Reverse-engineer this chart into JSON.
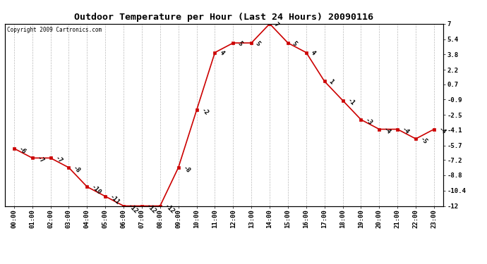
{
  "title": "Outdoor Temperature per Hour (Last 24 Hours) 20090116",
  "copyright_text": "Copyright 2009 Cartronics.com",
  "hours": [
    "00:00",
    "01:00",
    "02:00",
    "03:00",
    "04:00",
    "05:00",
    "06:00",
    "07:00",
    "08:00",
    "09:00",
    "10:00",
    "11:00",
    "12:00",
    "13:00",
    "14:00",
    "15:00",
    "16:00",
    "17:00",
    "18:00",
    "19:00",
    "20:00",
    "21:00",
    "22:00",
    "23:00"
  ],
  "temps": [
    -6,
    -7,
    -7,
    -8,
    -10,
    -11,
    -12,
    -12,
    -12,
    -8,
    -2,
    4,
    5,
    5,
    7,
    5,
    4,
    1,
    -1,
    -3,
    -4,
    -4,
    -5,
    -4
  ],
  "line_color": "#cc0000",
  "marker_color": "#cc0000",
  "bg_color": "#ffffff",
  "grid_color": "#bbbbbb",
  "ylim_min": -12.0,
  "ylim_max": 7.0,
  "yticks": [
    7.0,
    5.4,
    3.8,
    2.2,
    0.7,
    -0.9,
    -2.5,
    -4.1,
    -5.7,
    -7.2,
    -8.8,
    -10.4,
    -12.0
  ],
  "title_fontsize": 9.5,
  "label_fontsize": 6.5,
  "annotation_fontsize": 6.5,
  "copyright_fontsize": 5.5
}
